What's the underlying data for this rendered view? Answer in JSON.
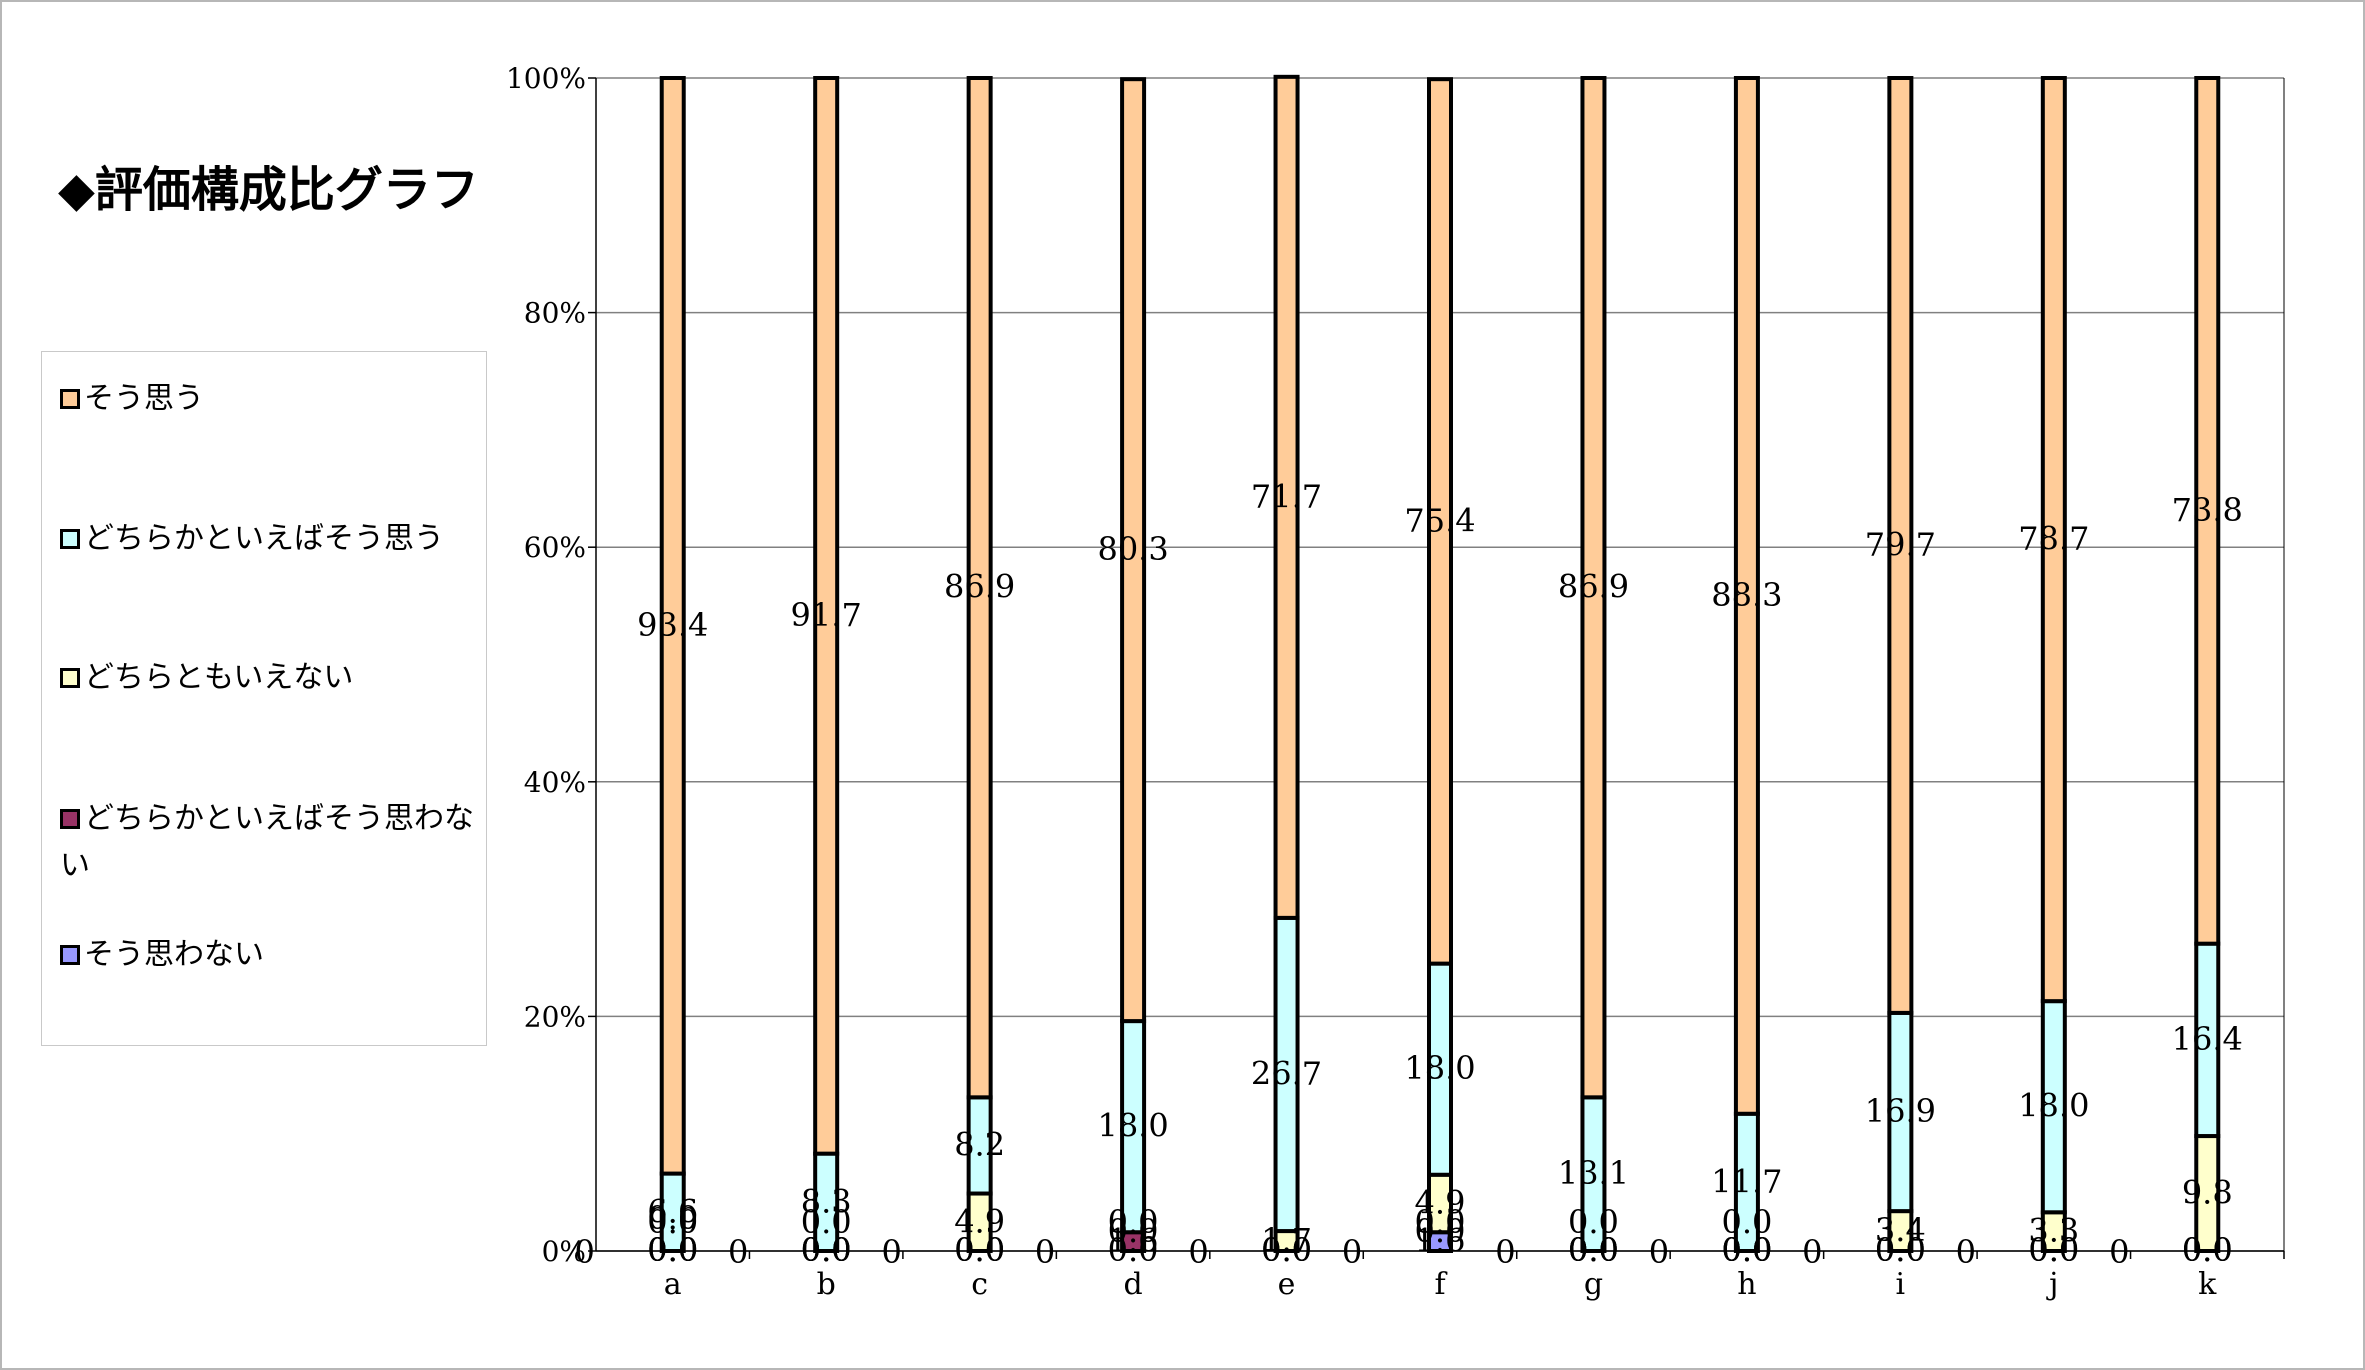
{
  "title": "◆評価構成比グラフ",
  "colors": {
    "soumou": "#FFCC99",
    "dochira_sou": "#CCFFFF",
    "dochira_mo": "#FFFFCC",
    "dochira_wa": "#993366",
    "souomowanai": "#9999FF",
    "grid": "#808080",
    "bar_outline": "#000000"
  },
  "legend": [
    {
      "label": "そう思う",
      "color": "#FFCC99"
    },
    {
      "label": "どちらかといえばそう思う",
      "color": "#CCFFFF"
    },
    {
      "label": "どちらともいえない",
      "color": "#FFFFCC"
    },
    {
      "label": "どちらかといえばそう思わない",
      "color": "#993366"
    },
    {
      "label": "そう思わない",
      "color": "#9999FF"
    }
  ],
  "chart_data": {
    "type": "bar",
    "stacked": true,
    "percent_stacked": true,
    "categories": [
      "a",
      "b",
      "c",
      "d",
      "e",
      "f",
      "g",
      "h",
      "i",
      "j",
      "k"
    ],
    "ylim": [
      0,
      100
    ],
    "yticks": [
      "0%",
      "20%",
      "40%",
      "60%",
      "80%",
      "100%"
    ],
    "grid": true,
    "legend_position": "left",
    "series": [
      {
        "name": "そう思わない",
        "color": "#9999FF",
        "values": [
          0.0,
          0.0,
          0.0,
          0.0,
          0.0,
          1.6,
          0.0,
          0.0,
          0.0,
          0.0,
          0.0
        ],
        "labels": [
          "0.0",
          "0.0",
          "0.0",
          "0.0",
          "0.0",
          "1.6",
          "0.0",
          "0.0",
          "0.0",
          "0.0",
          "0.0"
        ]
      },
      {
        "name": "どちらかといえばそう思わない",
        "color": "#993366",
        "values": [
          0.0,
          0.0,
          0.0,
          1.6,
          0.0,
          0.0,
          0.0,
          0.0,
          0.0,
          0.0,
          0.0
        ],
        "labels": [
          "0.0",
          "0.0",
          "0.0",
          "1.6",
          "0.0",
          "0.0",
          "0.0",
          "0.0",
          "0.0",
          "0.0",
          "0.0"
        ]
      },
      {
        "name": "どちらともいえない",
        "color": "#FFFFCC",
        "values": [
          0.0,
          0.0,
          4.9,
          0.0,
          1.7,
          4.9,
          0.0,
          0.0,
          3.4,
          3.3,
          9.8
        ],
        "labels": [
          "0.0",
          "0.0",
          "4.9",
          "0.0",
          "1.7",
          "4.9",
          "0.0",
          "0.0",
          "3.4",
          "3.3",
          "9.8"
        ]
      },
      {
        "name": "どちらかといえばそう思う",
        "color": "#CCFFFF",
        "values": [
          6.6,
          8.3,
          8.2,
          18.0,
          26.7,
          18.0,
          13.1,
          11.7,
          16.9,
          18.0,
          16.4
        ],
        "labels": [
          "6.6",
          "8.3",
          "8.2",
          "18.0",
          "26.7",
          "18.0",
          "13.1",
          "11.7",
          "16.9",
          "18.0",
          "16.4"
        ]
      },
      {
        "name": "そう思う",
        "color": "#FFCC99",
        "values": [
          93.4,
          91.7,
          86.9,
          80.3,
          71.7,
          75.4,
          86.9,
          88.3,
          79.7,
          78.7,
          73.8
        ],
        "labels": [
          "93.4",
          "91.7",
          "86.9",
          "80.3",
          "71.7",
          "75.4",
          "86.9",
          "88.3",
          "79.7",
          "78.7",
          "73.8"
        ]
      }
    ],
    "base_labels": [
      "0",
      "0",
      "0",
      "0",
      "0",
      "0",
      "0",
      "0",
      "0",
      "0",
      "0"
    ],
    "extra_labels": [
      {
        "category": "a",
        "labels": [
          "0.0",
          "0.0"
        ]
      },
      {
        "category": "b",
        "labels": [
          "0.0"
        ]
      },
      {
        "category": "d",
        "labels": [
          "0.0"
        ]
      },
      {
        "category": "f",
        "labels": [
          "0.0"
        ]
      },
      {
        "category": "g",
        "labels": [
          "0.0"
        ]
      },
      {
        "category": "h",
        "labels": [
          "0.0"
        ]
      }
    ]
  }
}
